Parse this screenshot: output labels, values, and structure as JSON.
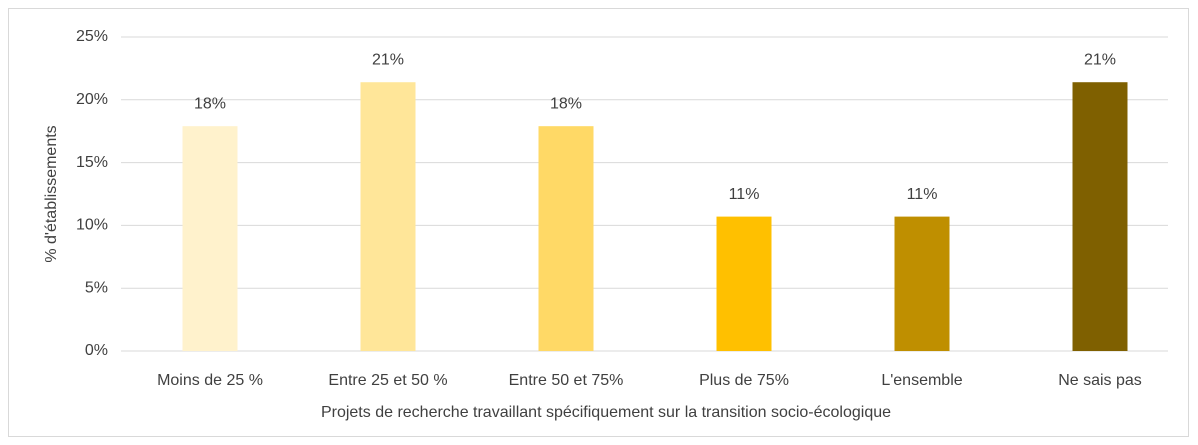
{
  "chart_data": {
    "type": "bar",
    "categories": [
      "Moins de 25 %",
      "Entre 25 et 50 %",
      "Entre 50 et 75%",
      "Plus de 75%",
      "L'ensemble",
      "Ne sais pas"
    ],
    "values": [
      17.9,
      21.4,
      17.9,
      10.7,
      10.7,
      21.4
    ],
    "value_labels": [
      "18%",
      "21%",
      "18%",
      "11%",
      "11%",
      "21%"
    ],
    "colors": [
      "#fff2cc",
      "#ffe699",
      "#ffd966",
      "#ffc000",
      "#bf8f00",
      "#7f6000"
    ],
    "x_label": "Projets de recherche travaillant spécifiquement sur la transition socio-écologique",
    "y_label": "% d'établissements",
    "ylim": [
      0,
      25
    ],
    "yticks": [
      {
        "value": 0,
        "label": "0%"
      },
      {
        "value": 5,
        "label": "5%"
      },
      {
        "value": 10,
        "label": "10%"
      },
      {
        "value": 15,
        "label": "15%"
      },
      {
        "value": 20,
        "label": "20%"
      },
      {
        "value": 25,
        "label": "25%"
      }
    ],
    "grid": true
  }
}
